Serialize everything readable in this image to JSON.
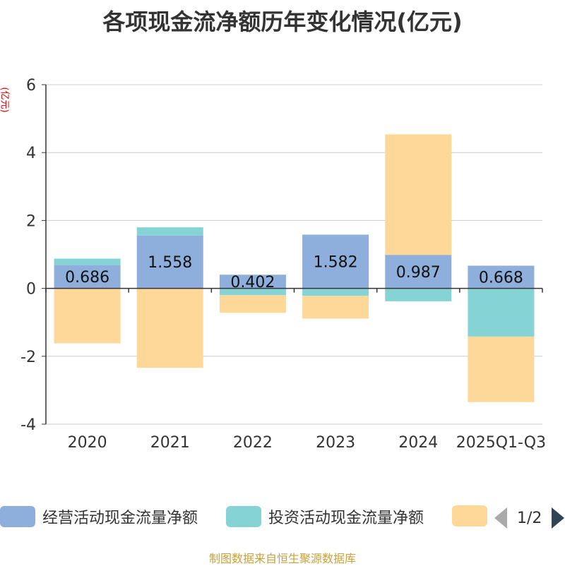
{
  "title": "各项现金流净额历年变化情况(亿元)",
  "source": "制图数据来自恒生聚源数据库",
  "legend_pager": "1/2",
  "colors": {
    "operating": "#8eaedb",
    "investing": "#86d3d6",
    "financing": "#fed898",
    "axis": "#333333",
    "grid": "#cccccc"
  },
  "chart_data": {
    "type": "bar",
    "stacked": true,
    "title": "各项现金流净额历年变化情况(亿元)",
    "ylabel": "(亿元)",
    "xlabel": "",
    "ylim": [
      -4,
      6
    ],
    "yticks": [
      "6",
      "4",
      "2",
      "0",
      "-2",
      "-4"
    ],
    "ytick_values": [
      6,
      4,
      2,
      0,
      -2,
      -4
    ],
    "categories": [
      "2020",
      "2021",
      "2022",
      "2023",
      "2024",
      "2025Q1-Q3"
    ],
    "series": [
      {
        "name": "经营活动现金流量净额",
        "color": "#8eaedb",
        "values": [
          0.686,
          1.558,
          0.402,
          1.582,
          0.987,
          0.668
        ],
        "labels": [
          "0.686",
          "1.558",
          "0.402",
          "1.582",
          "0.987",
          "0.668"
        ]
      },
      {
        "name": "投资活动现金流量净额",
        "color": "#86d3d6",
        "values": [
          0.19,
          0.24,
          -0.2,
          -0.22,
          -0.38,
          -1.42
        ]
      },
      {
        "name": "",
        "color": "#fed898",
        "values": [
          -1.62,
          -2.34,
          -0.52,
          -0.67,
          3.55,
          -1.93
        ]
      }
    ]
  }
}
